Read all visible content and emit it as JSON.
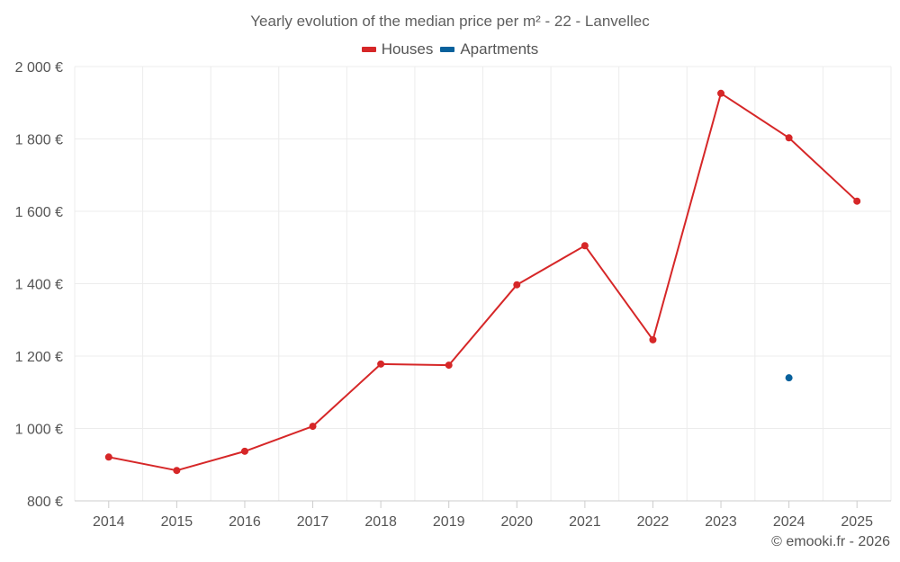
{
  "chart_data": {
    "type": "line",
    "title": "Yearly evolution of the median price per m² - 22 - Lanvellec",
    "xlabel": "",
    "ylabel": "",
    "categories": [
      "2014",
      "2015",
      "2016",
      "2017",
      "2018",
      "2019",
      "2020",
      "2021",
      "2022",
      "2023",
      "2024",
      "2025"
    ],
    "ylim": [
      800,
      2000
    ],
    "yticks": [
      800,
      1000,
      1200,
      1400,
      1600,
      1800,
      2000
    ],
    "ytick_labels": [
      "800 €",
      "1 000 €",
      "1 200 €",
      "1 400 €",
      "1 600 €",
      "1 800 €",
      "2 000 €"
    ],
    "grid": true,
    "legend_position": "top-center",
    "series": [
      {
        "name": "Houses",
        "color": "#d62728",
        "values": [
          921,
          884,
          937,
          1006,
          1178,
          1175,
          1397,
          1505,
          1245,
          1926,
          1803,
          1628
        ]
      },
      {
        "name": "Apartments",
        "color": "#08619c",
        "values": [
          null,
          null,
          null,
          null,
          null,
          null,
          null,
          null,
          null,
          null,
          1140,
          null
        ]
      }
    ],
    "credit": "© emooki.fr - 2026"
  }
}
